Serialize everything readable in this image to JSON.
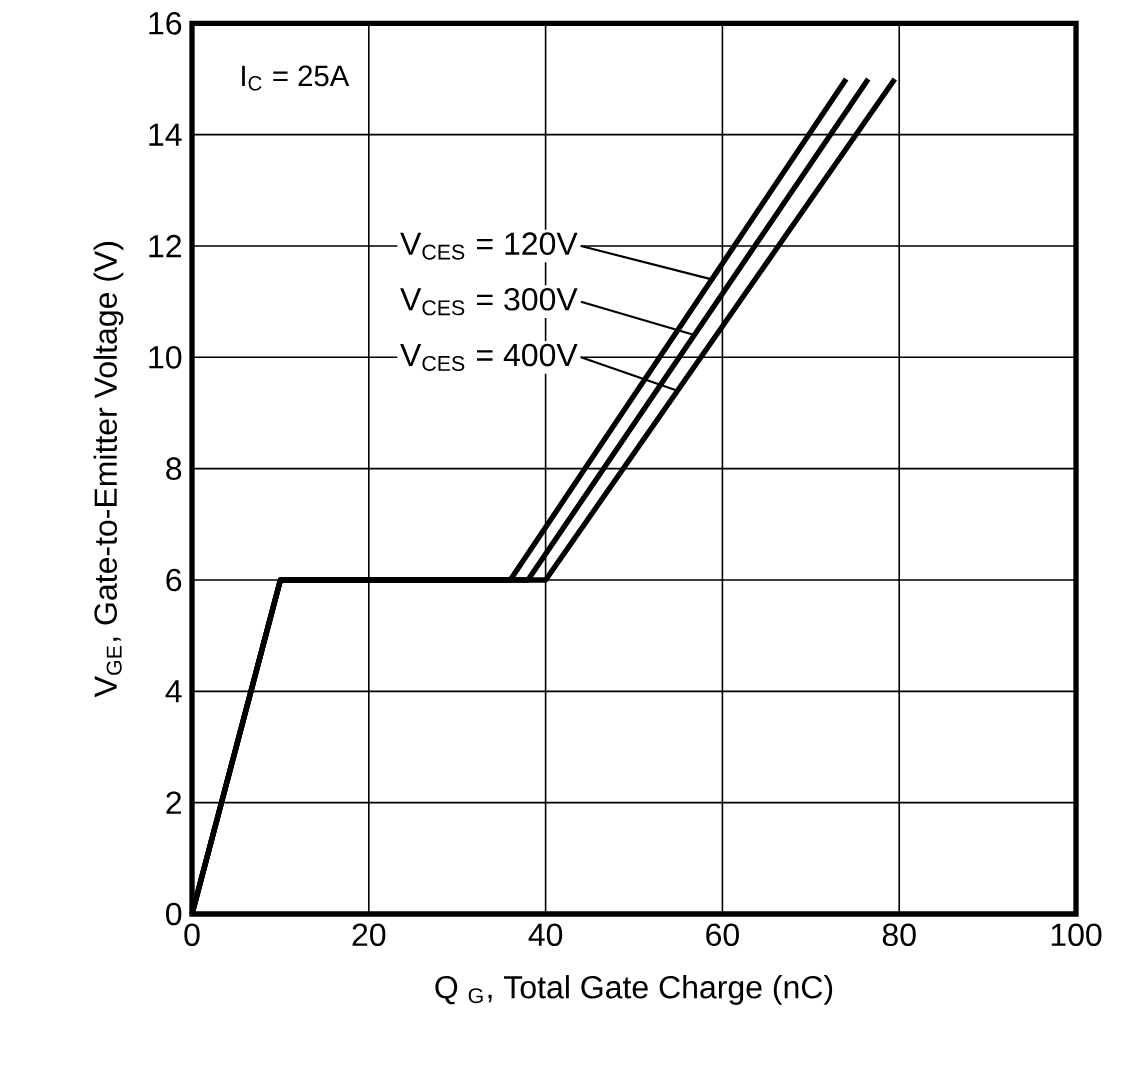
{
  "chart_data": {
    "type": "line",
    "xlabel": "Q $_{G}$, Total Gate Charge (nC)",
    "ylabel": "V$_{GE}$, Gate-to-Emitter Voltage (V)",
    "annotations": [
      "I$_{C}$ = 25A"
    ],
    "xlim": [
      0,
      100
    ],
    "ylim": [
      0,
      16
    ],
    "xticks": [
      0,
      20,
      40,
      60,
      80,
      100
    ],
    "yticks": [
      0,
      2,
      4,
      6,
      8,
      10,
      12,
      14,
      16
    ],
    "grid": true,
    "legend": "left",
    "line_style": "solid",
    "marker": "none",
    "series": [
      {
        "name": "V$_{CES}$ = 120V",
        "color": "#000000",
        "x": [
          0,
          10,
          36,
          74
        ],
        "values": [
          0,
          6,
          6,
          15
        ]
      },
      {
        "name": "V$_{CES}$ = 300V",
        "color": "#000000",
        "x": [
          0,
          10,
          38,
          76.5
        ],
        "values": [
          0,
          6,
          6,
          15
        ]
      },
      {
        "name": "V$_{CES}$ = 400V",
        "color": "#000000",
        "x": [
          0,
          10,
          40,
          79.5
        ],
        "values": [
          0,
          6,
          6,
          15
        ]
      }
    ]
  }
}
